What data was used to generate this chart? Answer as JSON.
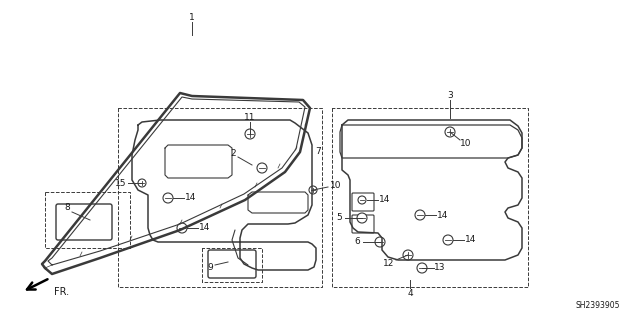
{
  "bg_color": "#ffffff",
  "line_color": "#3a3a3a",
  "text_color": "#1a1a1a",
  "fig_width": 6.4,
  "fig_height": 3.19,
  "dpi": 100,
  "watermark": "SH2393905"
}
